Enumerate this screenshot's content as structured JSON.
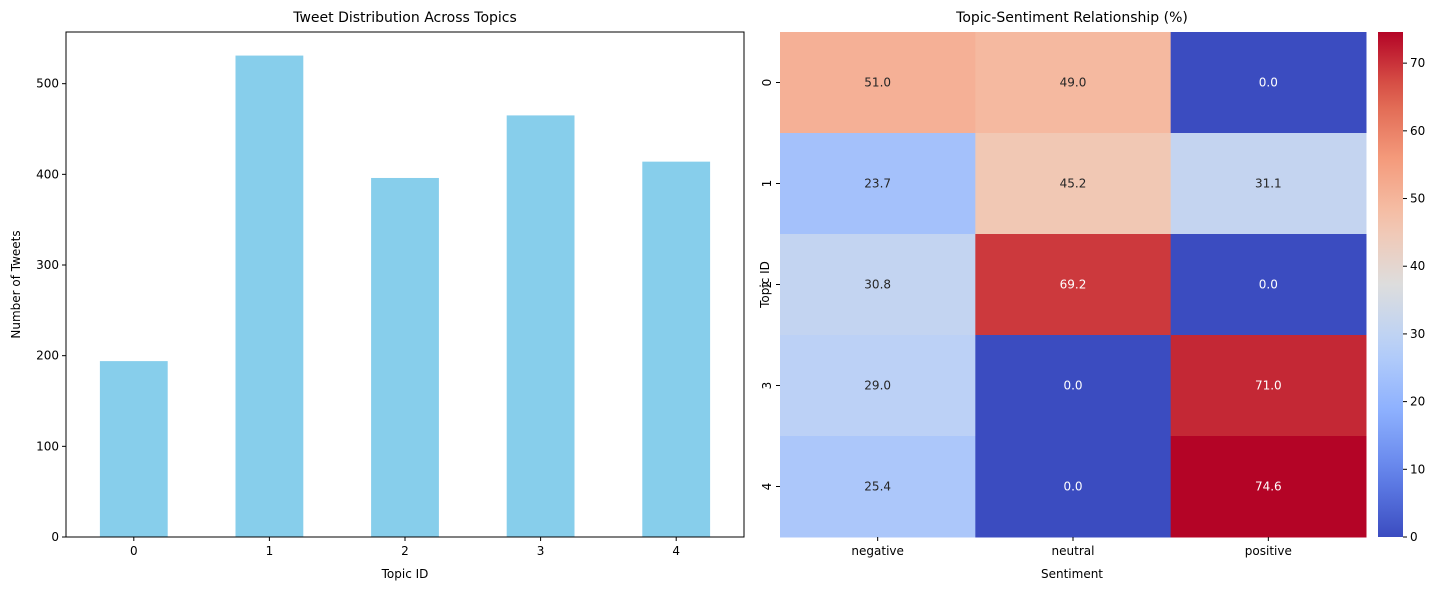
{
  "chart_data": [
    {
      "type": "bar",
      "title": "Tweet Distribution Across Topics",
      "xlabel": "Topic ID",
      "ylabel": "Number of Tweets",
      "categories": [
        "0",
        "1",
        "2",
        "3",
        "4"
      ],
      "values": [
        194,
        531,
        396,
        465,
        414
      ],
      "ylim": [
        0,
        557
      ],
      "yticks": [
        0,
        100,
        200,
        300,
        400,
        500
      ],
      "bar_color": "#87CEEB",
      "grid": false
    },
    {
      "type": "heatmap",
      "title": "Topic-Sentiment Relationship (%)",
      "xlabel": "Sentiment",
      "ylabel": "Topic ID",
      "x_categories": [
        "negative",
        "neutral",
        "positive"
      ],
      "y_categories": [
        "0",
        "1",
        "2",
        "3",
        "4"
      ],
      "values": [
        [
          51.0,
          49.0,
          0.0
        ],
        [
          23.7,
          45.2,
          31.1
        ],
        [
          30.8,
          69.2,
          0.0
        ],
        [
          29.0,
          0.0,
          71.0
        ],
        [
          25.4,
          0.0,
          74.6
        ]
      ],
      "value_labels": [
        [
          "51.0",
          "49.0",
          "0.0"
        ],
        [
          "23.7",
          "45.2",
          "31.1"
        ],
        [
          "30.8",
          "69.2",
          "0.0"
        ],
        [
          "29.0",
          "0.0",
          "71.0"
        ],
        [
          "25.4",
          "0.0",
          "74.6"
        ]
      ],
      "colormap": "coolwarm",
      "vmin": 0,
      "vmax": 74.6,
      "colorbar_ticks": [
        0,
        10,
        20,
        30,
        40,
        50,
        60,
        70
      ]
    }
  ]
}
